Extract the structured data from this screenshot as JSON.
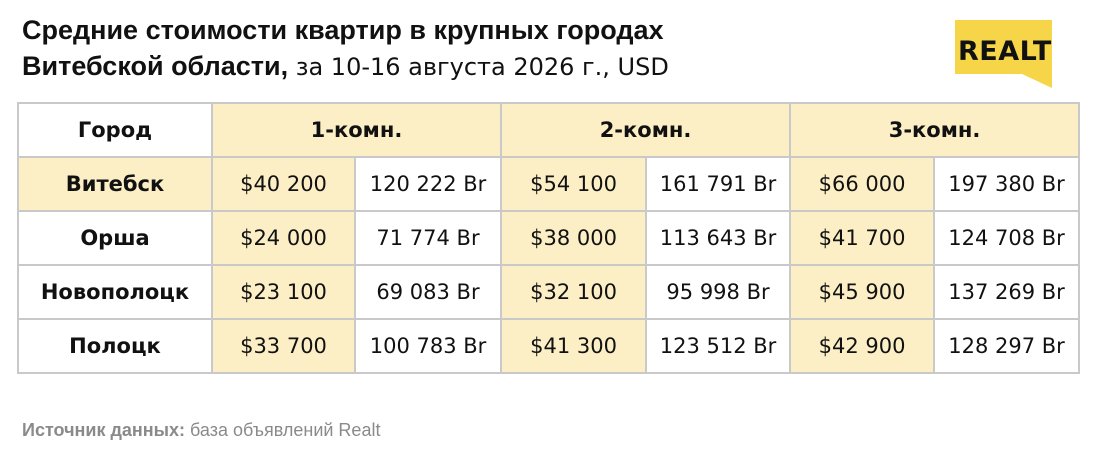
{
  "title": {
    "line1": "Средние стоимости квартир в крупных городах",
    "line2_bold": "Витебской области,",
    "line2_light": " за 10-16 августа 2026 г., USD"
  },
  "logo": {
    "text": "REALT",
    "color": "#f6d548"
  },
  "table": {
    "headers": [
      "Город",
      "1-комн.",
      "2-комн.",
      "3-комн."
    ],
    "rows": [
      {
        "city": "Витебск",
        "usd1": "$40 200",
        "byn1": "120 222 Br",
        "usd2": "$54 100",
        "byn2": "161 791 Br",
        "usd3": "$66 000",
        "byn3": "197 380 Br"
      },
      {
        "city": "Орша",
        "usd1": "$24 000",
        "byn1": "71 774 Br",
        "usd2": "$38 000",
        "byn2": "113 643 Br",
        "usd3": "$41 700",
        "byn3": "124 708 Br"
      },
      {
        "city": "Новополоцк",
        "usd1": "$23 100",
        "byn1": "69 083 Br",
        "usd2": "$32 100",
        "byn2": "95 998 Br",
        "usd3": "$45 900",
        "byn3": "137 269 Br"
      },
      {
        "city": "Полоцк",
        "usd1": "$33 700",
        "byn1": "100 783 Br",
        "usd2": "$41 300",
        "byn2": "123 512 Br",
        "usd3": "$42 900",
        "byn3": "128 297 Br"
      }
    ]
  },
  "source": {
    "label": "Источник данных:",
    "text": " база объявлений Realt"
  },
  "colors": {
    "highlight": "#fcefc6",
    "border": "#c9c9c9",
    "muted": "#8a8a8a"
  }
}
